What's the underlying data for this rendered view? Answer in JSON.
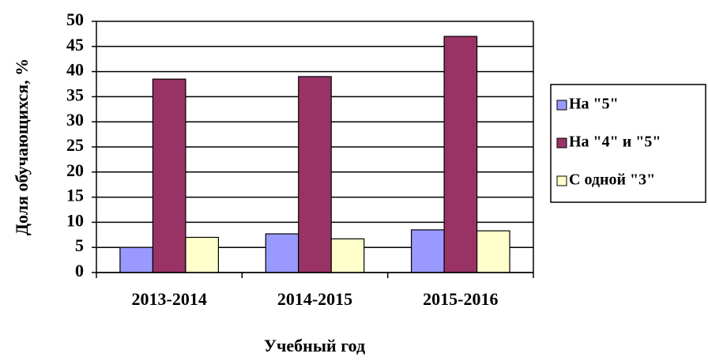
{
  "chart_data": {
    "type": "bar",
    "categories": [
      "2013-2014",
      "2014-2015",
      "2015-2016"
    ],
    "series": [
      {
        "name": "На \"5\"",
        "color": "#9999ff",
        "values": [
          5,
          7.7,
          8.5
        ]
      },
      {
        "name": "На \"4\" и \"5\"",
        "color": "#993366",
        "values": [
          38.5,
          39,
          47
        ]
      },
      {
        "name": "С одной \"3\"",
        "color": "#ffffcc",
        "values": [
          7,
          6.7,
          8.3
        ]
      }
    ],
    "ylim": [
      0,
      50
    ],
    "yticks": [
      0,
      5,
      10,
      15,
      20,
      25,
      30,
      35,
      40,
      45,
      50
    ],
    "grid": true,
    "y_label": "Доля обучающихся, %",
    "x_label": "Учебный год",
    "legend": "right"
  }
}
